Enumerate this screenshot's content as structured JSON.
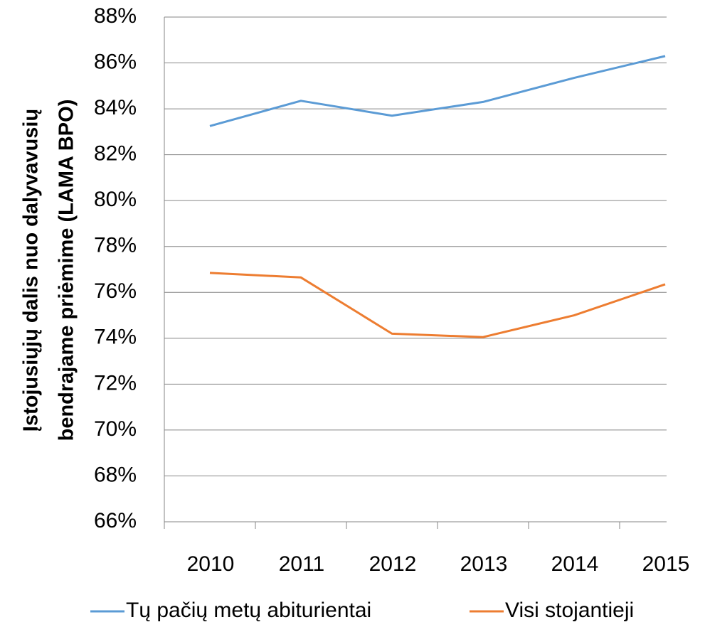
{
  "chart_data": {
    "type": "line",
    "y_label": [
      "Įstojusiųjų dalis nuo dalyvavusių",
      "bendrajame priėmime (LAMA BPO)"
    ],
    "categories": [
      "2010",
      "2011",
      "2012",
      "2013",
      "2014",
      "2015"
    ],
    "series": [
      {
        "name": "Tų pačių metų abiturientai",
        "color": "#5b9bd5",
        "values": [
          83.25,
          84.35,
          83.7,
          84.3,
          85.35,
          86.3
        ]
      },
      {
        "name": "Visi stojantieji",
        "color": "#ed7d31",
        "values": [
          76.85,
          76.65,
          74.2,
          74.05,
          75.0,
          76.35
        ]
      }
    ],
    "ylim": [
      66,
      88
    ],
    "yticks": [
      {
        "value": 66,
        "label": "66%"
      },
      {
        "value": 68,
        "label": "68%"
      },
      {
        "value": 70,
        "label": "70%"
      },
      {
        "value": 72,
        "label": "72%"
      },
      {
        "value": 74,
        "label": "74%"
      },
      {
        "value": 76,
        "label": "76%"
      },
      {
        "value": 78,
        "label": "78%"
      },
      {
        "value": 80,
        "label": "80%"
      },
      {
        "value": 82,
        "label": "82%"
      },
      {
        "value": 84,
        "label": "84%"
      },
      {
        "value": 86,
        "label": "86%"
      },
      {
        "value": 88,
        "label": "88%"
      }
    ],
    "grid": true,
    "legend": "bottom"
  }
}
